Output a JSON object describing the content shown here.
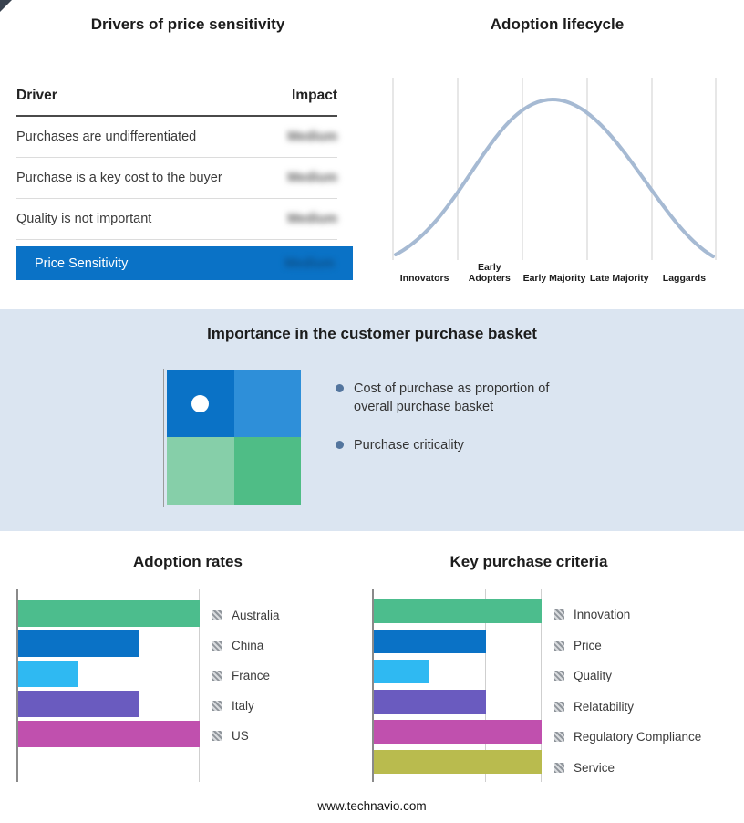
{
  "colors": {
    "accent_blue": "#0a72c6",
    "band_bg": "#dbe5f1",
    "curve": "#a6bad3",
    "grid": "#cfcfcf",
    "bullet_dot": "#53759e",
    "quad_top_left": "#0a72c6",
    "quad_top_right": "#2e8fd9",
    "quad_bottom_left": "#86cfa9",
    "quad_bottom_right": "#4fbd86"
  },
  "drivers": {
    "title": "Drivers of price sensitivity",
    "col_driver": "Driver",
    "col_impact": "Impact",
    "rows": [
      {
        "driver": "Purchases are undifferentiated",
        "impact": "Medium"
      },
      {
        "driver": "Purchase is a key cost to the buyer",
        "impact": "Medium"
      },
      {
        "driver": "Quality is not important",
        "impact": "Medium"
      }
    ],
    "summary": {
      "label": "Price Sensitivity",
      "impact": "Medium"
    }
  },
  "basket": {
    "title": "Importance in the customer purchase basket",
    "bullets": [
      "Cost of purchase as proportion of overall purchase basket",
      "Purchase criticality"
    ]
  },
  "footer": {
    "site": "www.technavio.com"
  },
  "chart_data": [
    {
      "id": "lifecycle",
      "type": "line",
      "title": "Adoption lifecycle",
      "shape": "bell-curve",
      "categories": [
        "Innovators",
        "Early Adopters",
        "Early Majority",
        "Late Majority",
        "Laggards"
      ],
      "grid": true,
      "legend_position": "none"
    },
    {
      "id": "adoption",
      "type": "bar",
      "orientation": "horizontal",
      "title": "Adoption rates",
      "categories": [
        "Australia",
        "China",
        "France",
        "Italy",
        "US"
      ],
      "values": [
        3,
        2,
        1,
        2,
        3
      ],
      "xlim": [
        0,
        3
      ],
      "grid": true,
      "legend_position": "right",
      "colors": [
        "#4cbd8d",
        "#0a72c6",
        "#2fb9f2",
        "#6a5bbf",
        "#c050ae"
      ]
    },
    {
      "id": "criteria",
      "type": "bar",
      "orientation": "horizontal",
      "title": "Key purchase criteria",
      "categories": [
        "Innovation",
        "Price",
        "Quality",
        "Relatability",
        "Regulatory Compliance",
        "Service"
      ],
      "values": [
        3,
        2,
        1,
        2,
        3,
        3
      ],
      "xlim": [
        0,
        3
      ],
      "grid": true,
      "legend_position": "right",
      "colors": [
        "#4cbd8d",
        "#0a72c6",
        "#2fb9f2",
        "#6a5bbf",
        "#c050ae",
        "#b9bb4e"
      ]
    }
  ]
}
